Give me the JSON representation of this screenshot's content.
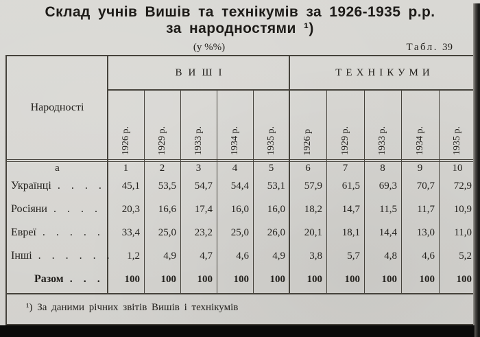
{
  "page": {
    "title_line1": "Склад учнів Вишів та технікумів за 1926-1935 р.р.",
    "title_line2": "за народностями ¹)",
    "subtitle": "(у %%)",
    "table_label": "Табл.",
    "table_number": "39"
  },
  "table": {
    "row_header_label": "Народності",
    "corner_label": "а",
    "groups": [
      {
        "label": "ВИШІ",
        "years": [
          "1926 р.",
          "1929 р.",
          "1933 р.",
          "1934 р.",
          "1935 р."
        ]
      },
      {
        "label": "ТЕХНІКУМИ",
        "years": [
          "1926 р",
          "1929 р.",
          "1933 р.",
          "1934 р.",
          "1935 р."
        ]
      }
    ],
    "col_numbers": [
      "1",
      "2",
      "3",
      "4",
      "5",
      "6",
      "7",
      "8",
      "9",
      "10"
    ],
    "rows": [
      {
        "label": "Українці",
        "leader": ". . . .",
        "values": [
          "45,1",
          "53,5",
          "54,7",
          "54,4",
          "53,1",
          "57,9",
          "61,5",
          "69,3",
          "70,7",
          "72,9"
        ]
      },
      {
        "label": "Росіяни",
        "leader": ". . . .",
        "values": [
          "20,3",
          "16,6",
          "17,4",
          "16,0",
          "16,0",
          "18,2",
          "14,7",
          "11,5",
          "11,7",
          "10,9"
        ]
      },
      {
        "label": "Евреї",
        "leader": ". . . . .",
        "values": [
          "33,4",
          "25,0",
          "23,2",
          "25,0",
          "26,0",
          "20,1",
          "18,1",
          "14,4",
          "13,0",
          "11,0"
        ]
      },
      {
        "label": "Інші",
        "leader": ". . . . . .",
        "values": [
          "1,2",
          "4,9",
          "4,7",
          "4,6",
          "4,9",
          "3,8",
          "5,7",
          "4,8",
          "4,6",
          "5,2"
        ]
      },
      {
        "label": "Разом",
        "leader": ". . .",
        "is_total": true,
        "values": [
          "100",
          "100",
          "100",
          "100",
          "100",
          "100",
          "100",
          "100",
          "100",
          "100"
        ]
      }
    ],
    "footnote": "¹) За даними річних звітів Вишів і технікумів"
  },
  "colors": {
    "paper": "#d7d6d2",
    "ink": "#23211d",
    "line": "#45423b",
    "edge_shadow": "#191917",
    "bottom_bar": "#0b0b0a"
  }
}
